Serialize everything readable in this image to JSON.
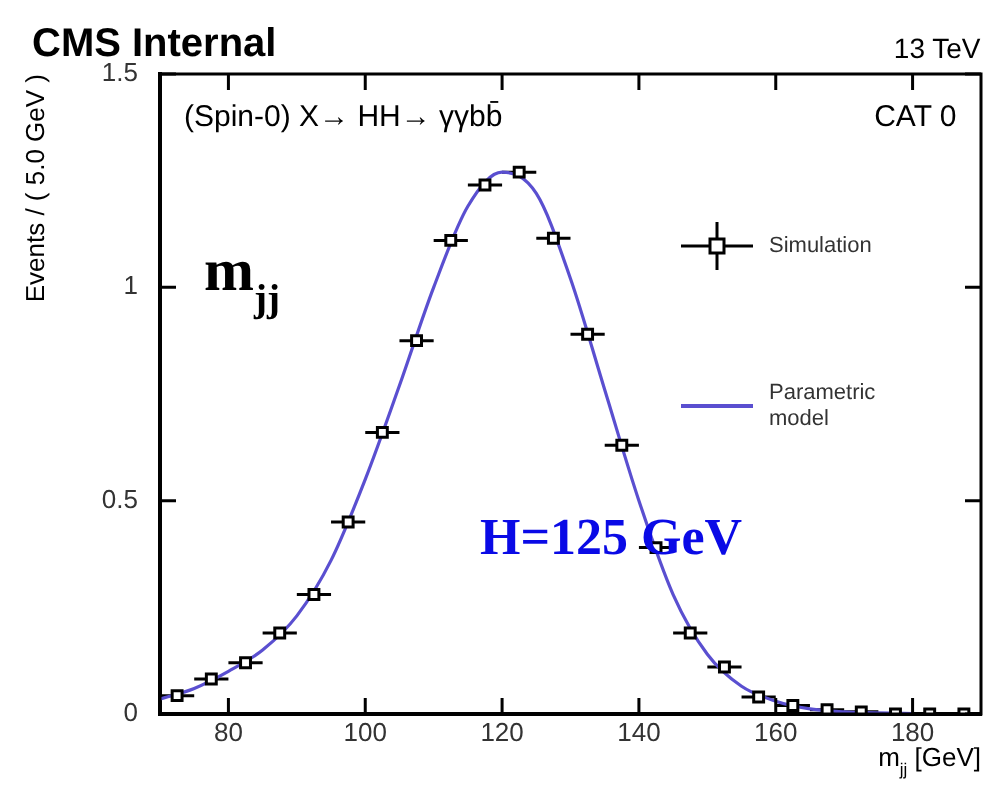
{
  "chart_data": {
    "type": "scatter",
    "title": "CMS Internal",
    "xlabel": "m$_{jj}$ [GeV]",
    "ylabel": "Events / ( 5.0 GeV )",
    "annotations": [
      "13 TeV",
      "(Spin-0) X→ HH→ γγbb̄",
      "CAT 0",
      "m$_{jj}$",
      "H=125 GeV"
    ],
    "xlim": [
      70,
      190
    ],
    "xticks": [
      80,
      100,
      120,
      140,
      160,
      180
    ],
    "ylim": [
      0,
      1.5
    ],
    "yticks": [
      0,
      0.5,
      1,
      1.5
    ],
    "grid": false,
    "legend": "top right",
    "series": [
      {
        "type": "scatter",
        "name": "Simulation",
        "color": "#000000",
        "marker": "square",
        "x": [
          72.5,
          77.5,
          82.5,
          87.5,
          92.5,
          97.5,
          102.5,
          107.5,
          112.5,
          117.5,
          122.5,
          127.5,
          132.5,
          137.5,
          142.5,
          147.5,
          152.5,
          157.5,
          162.5,
          167.5,
          172.5,
          177.5,
          182.5,
          187.5
        ],
        "values": [
          0.043,
          0.082,
          0.12,
          0.19,
          0.28,
          0.45,
          0.66,
          0.875,
          1.11,
          1.24,
          1.27,
          1.115,
          0.89,
          0.63,
          0.39,
          0.19,
          0.11,
          0.04,
          0.02,
          0.01,
          0.005,
          0,
          0,
          0
        ],
        "xerrors": [
          2.5,
          2.5,
          2.5,
          2.5,
          2.5,
          2.5,
          2.5,
          2.5,
          2.5,
          2.5,
          2.5,
          2.5,
          2.5,
          2.5,
          2.5,
          2.5,
          2.5,
          2.5,
          2.5,
          2.5,
          2.5,
          2.5,
          2.5,
          2.5
        ]
      },
      {
        "type": "line",
        "name": "Parametric model",
        "color": "#5a4fd0",
        "marker": "none",
        "x": [
          70,
          75,
          80,
          85,
          90,
          95,
          100,
          105,
          110,
          115,
          120,
          125,
          130,
          135,
          140,
          145,
          150,
          155,
          160,
          165,
          170,
          180
        ],
        "values": [
          0.035,
          0.06,
          0.1,
          0.15,
          0.23,
          0.36,
          0.55,
          0.77,
          1.0,
          1.19,
          1.27,
          1.22,
          1.02,
          0.76,
          0.5,
          0.28,
          0.14,
          0.065,
          0.03,
          0.012,
          0.005,
          0.001
        ]
      }
    ]
  }
}
